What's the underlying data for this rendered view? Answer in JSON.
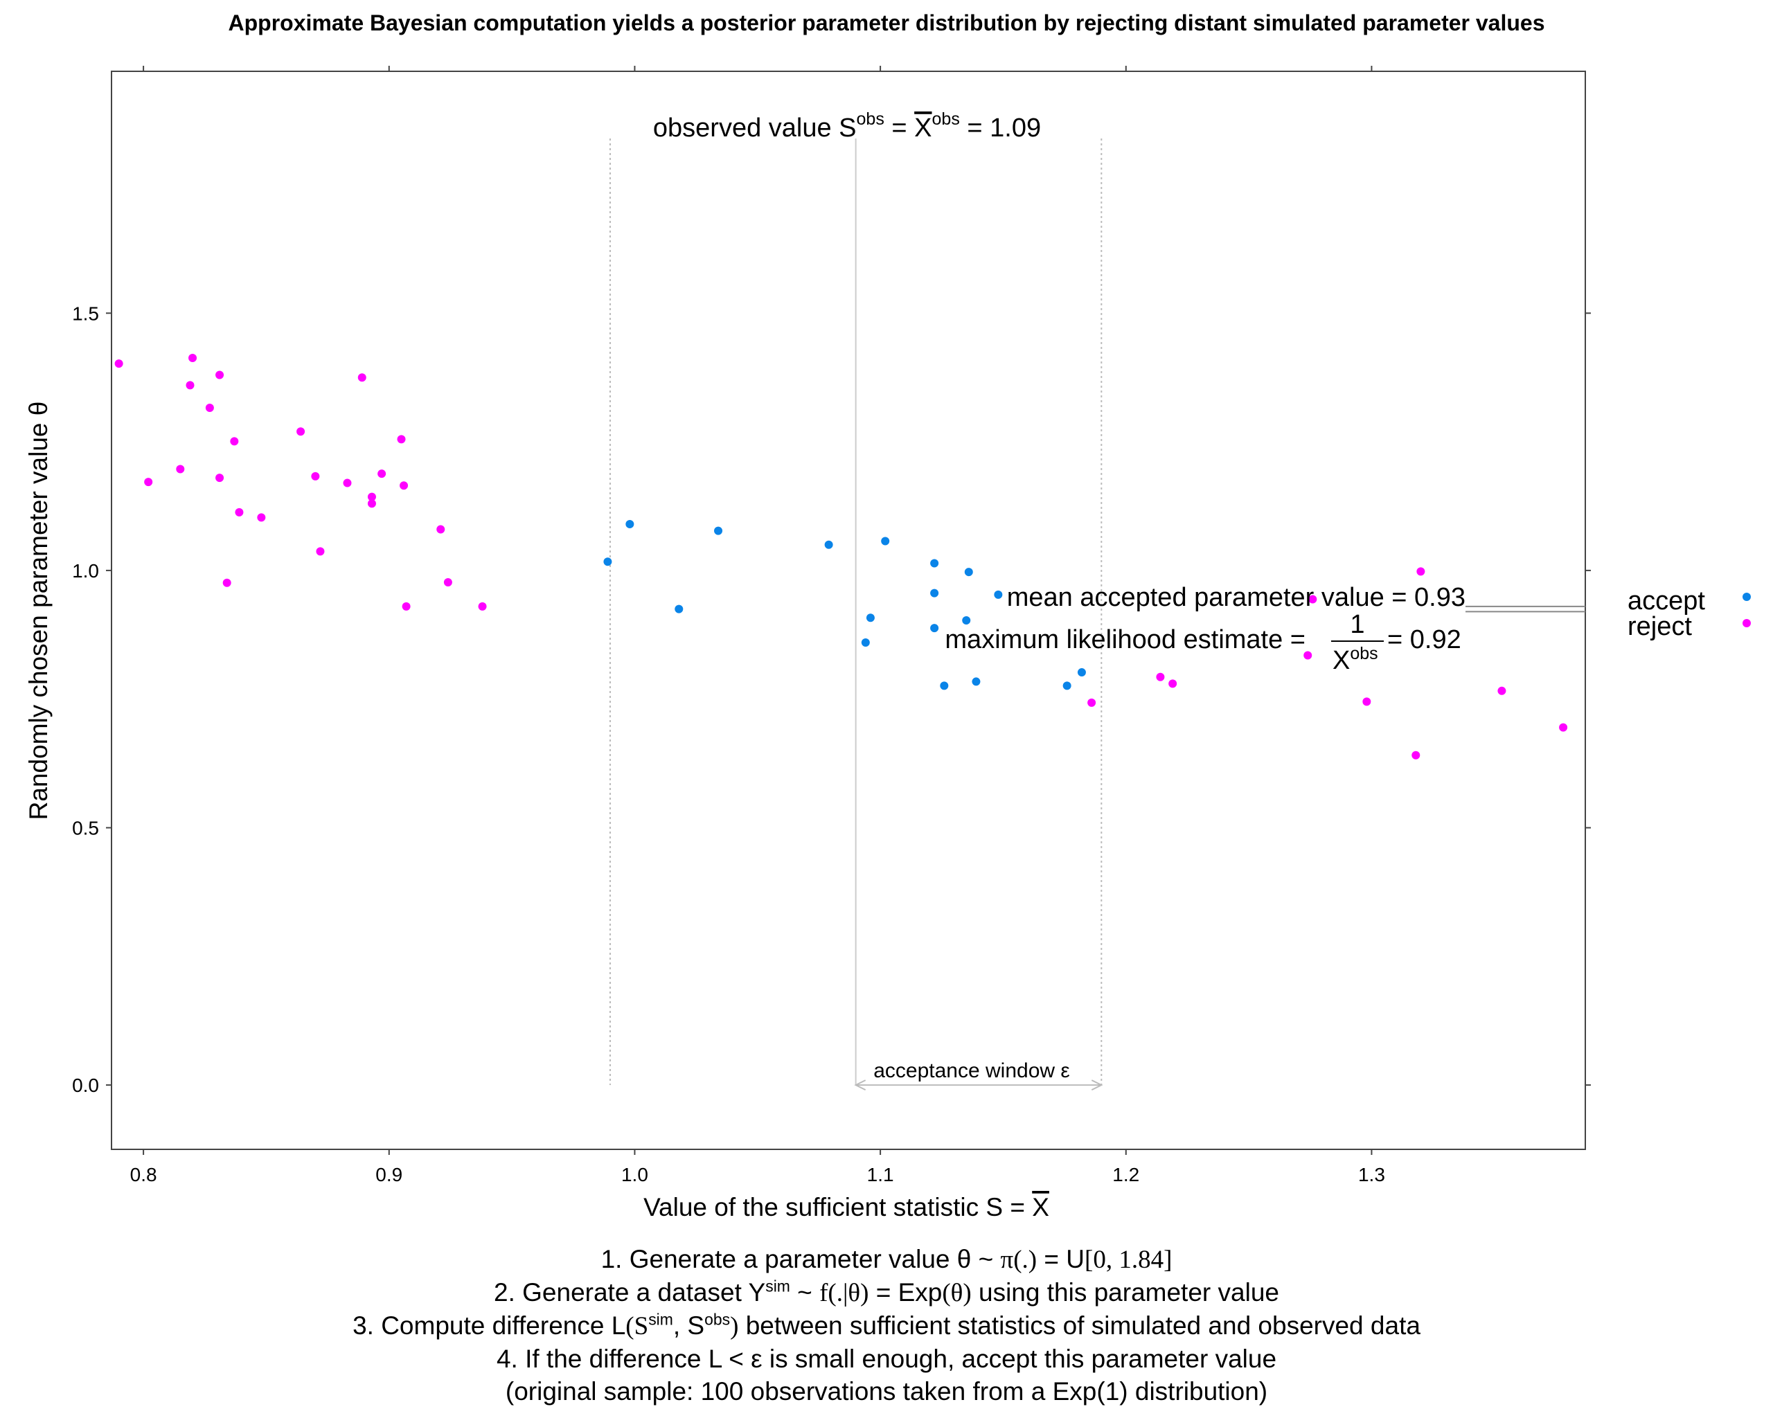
{
  "colors": {
    "accept": "#0a84e8",
    "reject": "#ff00ff",
    "axis": "#444444",
    "guide": "#bbbbbb"
  },
  "chart_data": {
    "type": "scatter",
    "title": "Approximate Bayesian computation yields a posterior parameter distribution by rejecting distant simulated parameter values",
    "xlabel_text": "Value of the sufficient statistic S = ",
    "xlabel_sym": "X",
    "ylabel": "Randomly chosen parameter value θ",
    "xlim": [
      0.787,
      1.387
    ],
    "ylim": [
      -0.125,
      1.97
    ],
    "x_ticks": [
      0.8,
      0.9,
      1.0,
      1.1,
      1.2,
      1.3
    ],
    "x_tick_labels": [
      "0.8",
      "0.9",
      "1.0",
      "1.1",
      "1.2",
      "1.3"
    ],
    "y_ticks": [
      0.0,
      0.5,
      1.0,
      1.5
    ],
    "y_tick_labels": [
      "0.0",
      "0.5",
      "1.0",
      "1.5"
    ],
    "grid": false,
    "observed_value": 1.09,
    "window": [
      0.99,
      1.19
    ],
    "inner_window": [
      1.09,
      1.19
    ],
    "mean_accepted": 0.93,
    "mle": 0.92,
    "annotations": {
      "observed": {
        "prefix": "observed value S",
        "sup1": "obs",
        "mid": " = ",
        "bar": "X",
        "sup2": "obs",
        "suffix": " = 1.09"
      },
      "mean": "mean accepted parameter value = 0.93",
      "mle": {
        "prefix": "maximum likelihood estimate = ",
        "num": "1",
        "den": "X",
        "den_sup": "obs",
        "suffix": " = 0.92"
      },
      "window": "acceptance window ε"
    },
    "legend": {
      "placement": "right",
      "entries": [
        "accept",
        "reject"
      ]
    },
    "series": [
      {
        "name": "accept",
        "points": [
          [
            0.989,
            1.017
          ],
          [
            0.998,
            1.09
          ],
          [
            1.018,
            0.925
          ],
          [
            1.034,
            1.077
          ],
          [
            1.079,
            1.05
          ],
          [
            1.094,
            0.86
          ],
          [
            1.096,
            0.908
          ],
          [
            1.102,
            1.057
          ],
          [
            1.122,
            1.014
          ],
          [
            1.122,
            0.956
          ],
          [
            1.122,
            0.888
          ],
          [
            1.126,
            0.776
          ],
          [
            1.136,
            0.997
          ],
          [
            1.135,
            0.903
          ],
          [
            1.139,
            0.784
          ],
          [
            1.148,
            0.953
          ],
          [
            1.176,
            0.776
          ],
          [
            1.182,
            0.802
          ]
        ]
      },
      {
        "name": "reject",
        "points": [
          [
            0.79,
            1.402
          ],
          [
            0.802,
            1.172
          ],
          [
            0.815,
            1.197
          ],
          [
            0.819,
            1.36
          ],
          [
            0.82,
            1.413
          ],
          [
            0.827,
            1.316
          ],
          [
            0.831,
            1.38
          ],
          [
            0.831,
            1.18
          ],
          [
            0.834,
            0.976
          ],
          [
            0.837,
            1.251
          ],
          [
            0.839,
            1.113
          ],
          [
            0.848,
            1.103
          ],
          [
            0.864,
            1.27
          ],
          [
            0.87,
            1.183
          ],
          [
            0.872,
            1.037
          ],
          [
            0.883,
            1.17
          ],
          [
            0.889,
            1.375
          ],
          [
            0.893,
            1.143
          ],
          [
            0.893,
            1.13
          ],
          [
            0.897,
            1.188
          ],
          [
            0.905,
            1.255
          ],
          [
            0.906,
            1.165
          ],
          [
            0.907,
            0.93
          ],
          [
            0.921,
            1.08
          ],
          [
            0.924,
            0.977
          ],
          [
            0.938,
            0.93
          ],
          [
            1.186,
            0.743
          ],
          [
            1.214,
            0.793
          ],
          [
            1.219,
            0.78
          ],
          [
            1.274,
            0.835
          ],
          [
            1.276,
            0.944
          ],
          [
            1.298,
            0.745
          ],
          [
            1.318,
            0.641
          ],
          [
            1.32,
            0.998
          ],
          [
            1.353,
            0.766
          ],
          [
            1.378,
            0.695
          ]
        ]
      }
    ]
  },
  "steps": {
    "s1_a": "1. Generate a parameter value θ ~ ",
    "s1_b": "π(.)",
    "s1_c": " = U",
    "s1_d": "[0, 1.84]",
    "s2_a": "2. Generate a dataset Y",
    "s2_sup": "sim",
    "s2_b": " ~ ",
    "s2_c": "f(.|θ)",
    "s2_d": " = Exp",
    "s2_e": "(θ)",
    "s2_f": " using this parameter value",
    "s3_a": "3. Compute difference L",
    "s3_b": "(S",
    "s3_sup1": "sim",
    "s3_c": ", S",
    "s3_sup2": "obs",
    "s3_d": ")",
    "s3_e": " between sufficient statistics of simulated and observed data",
    "s4": "4. If the difference L < ε is small enough, accept this parameter value",
    "s5": "(original sample: 100 observations taken from a Exp(1) distribution)"
  }
}
